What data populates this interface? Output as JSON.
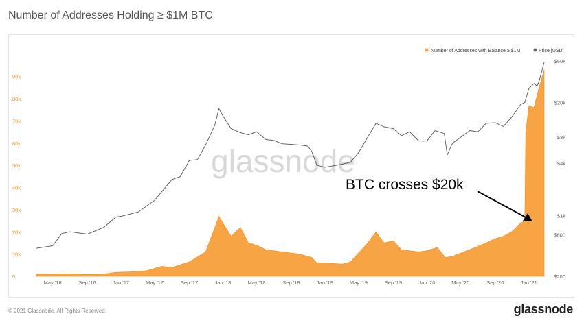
{
  "page": {
    "title": "Number of Addresses Holding ≥ $1M BTC",
    "footer_copyright": "© 2021 Glassnode. All Rights Reserved.",
    "footer_brand": "glassnode",
    "watermark": "glassnode"
  },
  "colors": {
    "series_fill": "#f7a445",
    "series_stroke": "#e88f24",
    "price_line": "#555555",
    "left_ticks": "#e8962e"
  },
  "chart_data": {
    "type": "area",
    "x_tick_labels": [
      "May '16",
      "Sep '16",
      "Jan '17",
      "May '17",
      "Sep '17",
      "Jan '18",
      "May '18",
      "Sep '18",
      "Jan '19",
      "May '19",
      "Sep '19",
      "Jan '20",
      "May '20",
      "Sep '20",
      "Jan '21"
    ],
    "left_axis": {
      "ticks": [
        "0",
        "10k",
        "20k",
        "30k",
        "40k",
        "50k",
        "60k",
        "70k",
        "80k",
        "90k"
      ],
      "range": [
        0,
        97000
      ]
    },
    "right_axis": {
      "scale": "log",
      "ticks": [
        "$200",
        "$600",
        "$1k",
        "$4k",
        "$8k",
        "$20k",
        "$60k"
      ],
      "range": [
        200,
        60000
      ]
    },
    "legend": {
      "placement": "top-right",
      "items": [
        "Number of Addresses with Balance ≥ $1M",
        "Price [USD]"
      ]
    },
    "annotation": {
      "text": "BTC crosses $20k",
      "x": 2020.96,
      "y": 25000
    },
    "series": [
      {
        "name": "Number of Addresses with Balance ≥ $1M",
        "axis": "left",
        "points": [
          [
            2016.17,
            1000
          ],
          [
            2016.33,
            900
          ],
          [
            2016.5,
            1100
          ],
          [
            2016.67,
            800
          ],
          [
            2016.83,
            1000
          ],
          [
            2016.95,
            1800
          ],
          [
            2017.08,
            2000
          ],
          [
            2017.25,
            2500
          ],
          [
            2017.4,
            4500
          ],
          [
            2017.5,
            4000
          ],
          [
            2017.67,
            6500
          ],
          [
            2017.83,
            11000
          ],
          [
            2017.92,
            22000
          ],
          [
            2017.96,
            27000
          ],
          [
            2018.0,
            24000
          ],
          [
            2018.08,
            18000
          ],
          [
            2018.17,
            22000
          ],
          [
            2018.25,
            15000
          ],
          [
            2018.33,
            14000
          ],
          [
            2018.42,
            12000
          ],
          [
            2018.58,
            11000
          ],
          [
            2018.75,
            10000
          ],
          [
            2018.87,
            8500
          ],
          [
            2018.92,
            6000
          ],
          [
            2019.0,
            6000
          ],
          [
            2019.17,
            5500
          ],
          [
            2019.25,
            6500
          ],
          [
            2019.42,
            15000
          ],
          [
            2019.5,
            20000
          ],
          [
            2019.58,
            15000
          ],
          [
            2019.67,
            16000
          ],
          [
            2019.75,
            12000
          ],
          [
            2019.92,
            11000
          ],
          [
            2020.0,
            11500
          ],
          [
            2020.1,
            13000
          ],
          [
            2020.18,
            8500
          ],
          [
            2020.25,
            9000
          ],
          [
            2020.42,
            12000
          ],
          [
            2020.58,
            15000
          ],
          [
            2020.67,
            17000
          ],
          [
            2020.75,
            18000
          ],
          [
            2020.83,
            20000
          ],
          [
            2020.92,
            24000
          ],
          [
            2020.96,
            25000
          ],
          [
            2020.97,
            65000
          ],
          [
            2021.0,
            77000
          ],
          [
            2021.05,
            76000
          ],
          [
            2021.1,
            85000
          ],
          [
            2021.15,
            93000
          ]
        ]
      },
      {
        "name": "Price [USD]",
        "axis": "right",
        "points": [
          [
            2016.17,
            420
          ],
          [
            2016.33,
            450
          ],
          [
            2016.42,
            620
          ],
          [
            2016.5,
            650
          ],
          [
            2016.67,
            610
          ],
          [
            2016.83,
            730
          ],
          [
            2016.95,
            960
          ],
          [
            2017.0,
            980
          ],
          [
            2017.17,
            1100
          ],
          [
            2017.33,
            1500
          ],
          [
            2017.5,
            2600
          ],
          [
            2017.58,
            2800
          ],
          [
            2017.67,
            4300
          ],
          [
            2017.75,
            4400
          ],
          [
            2017.83,
            6500
          ],
          [
            2017.92,
            11000
          ],
          [
            2017.96,
            17000
          ],
          [
            2018.0,
            14000
          ],
          [
            2018.08,
            10000
          ],
          [
            2018.17,
            9000
          ],
          [
            2018.25,
            8500
          ],
          [
            2018.33,
            9200
          ],
          [
            2018.42,
            7500
          ],
          [
            2018.5,
            7300
          ],
          [
            2018.58,
            6700
          ],
          [
            2018.75,
            6500
          ],
          [
            2018.83,
            6300
          ],
          [
            2018.87,
            5500
          ],
          [
            2018.92,
            3800
          ],
          [
            2019.0,
            3600
          ],
          [
            2019.17,
            3900
          ],
          [
            2019.25,
            4100
          ],
          [
            2019.33,
            5300
          ],
          [
            2019.42,
            8000
          ],
          [
            2019.5,
            11500
          ],
          [
            2019.58,
            10500
          ],
          [
            2019.67,
            10000
          ],
          [
            2019.75,
            8300
          ],
          [
            2019.83,
            9200
          ],
          [
            2019.92,
            7200
          ],
          [
            2020.0,
            7200
          ],
          [
            2020.08,
            9500
          ],
          [
            2020.17,
            8800
          ],
          [
            2020.2,
            5000
          ],
          [
            2020.25,
            6800
          ],
          [
            2020.42,
            9500
          ],
          [
            2020.5,
            9200
          ],
          [
            2020.58,
            11500
          ],
          [
            2020.67,
            11700
          ],
          [
            2020.75,
            10600
          ],
          [
            2020.83,
            13500
          ],
          [
            2020.92,
            19000
          ],
          [
            2020.96,
            20000
          ],
          [
            2021.0,
            29000
          ],
          [
            2021.05,
            33000
          ],
          [
            2021.08,
            31000
          ],
          [
            2021.1,
            35000
          ],
          [
            2021.15,
            58000
          ]
        ]
      }
    ]
  }
}
